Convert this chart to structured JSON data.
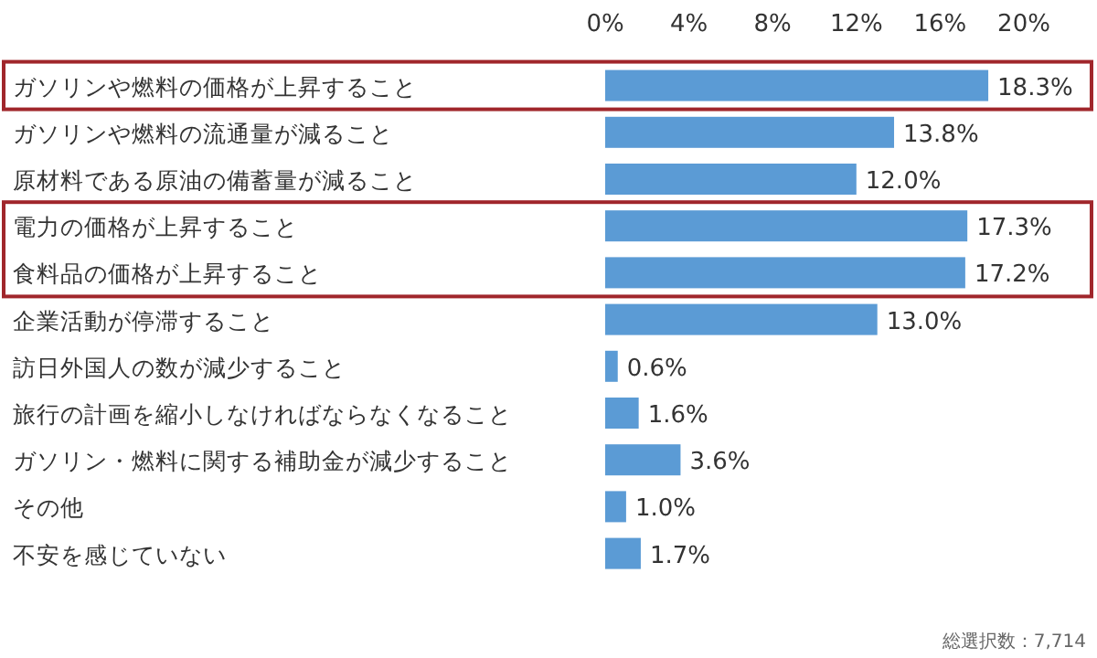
{
  "chart_data": {
    "type": "bar",
    "orientation": "horizontal",
    "categories": [
      "ガソリンや燃料の価格が上昇すること",
      "ガソリンや燃料の流通量が減ること",
      "原材料である原油の備蓄量が減ること",
      "電力の価格が上昇すること",
      "食料品の価格が上昇すること",
      "企業活動が停滞すること",
      "訪日外国人の数が減少すること",
      "旅行の計画を縮小しなければならなくなること",
      "ガソリン・燃料に関する補助金が減少すること",
      "その他",
      "不安を感じていない"
    ],
    "values": [
      18.3,
      13.8,
      12.0,
      17.3,
      17.2,
      13.0,
      0.6,
      1.6,
      3.6,
      1.0,
      1.7
    ],
    "value_labels": [
      "18.3%",
      "13.8%",
      "12.0%",
      "17.3%",
      "17.2%",
      "13.0%",
      "0.6%",
      "1.6%",
      "3.6%",
      "1.0%",
      "1.7%"
    ],
    "color": "#5b9bd5",
    "xlim": [
      0,
      20
    ],
    "xticks": [
      {
        "value": 0,
        "label": "0%"
      },
      {
        "value": 4,
        "label": "4%"
      },
      {
        "value": 8,
        "label": "8%"
      },
      {
        "value": 12,
        "label": "12%"
      },
      {
        "value": 16,
        "label": "16%"
      },
      {
        "value": 20,
        "label": "20%"
      }
    ],
    "annotations": [
      "総選択数：7,714"
    ]
  }
}
